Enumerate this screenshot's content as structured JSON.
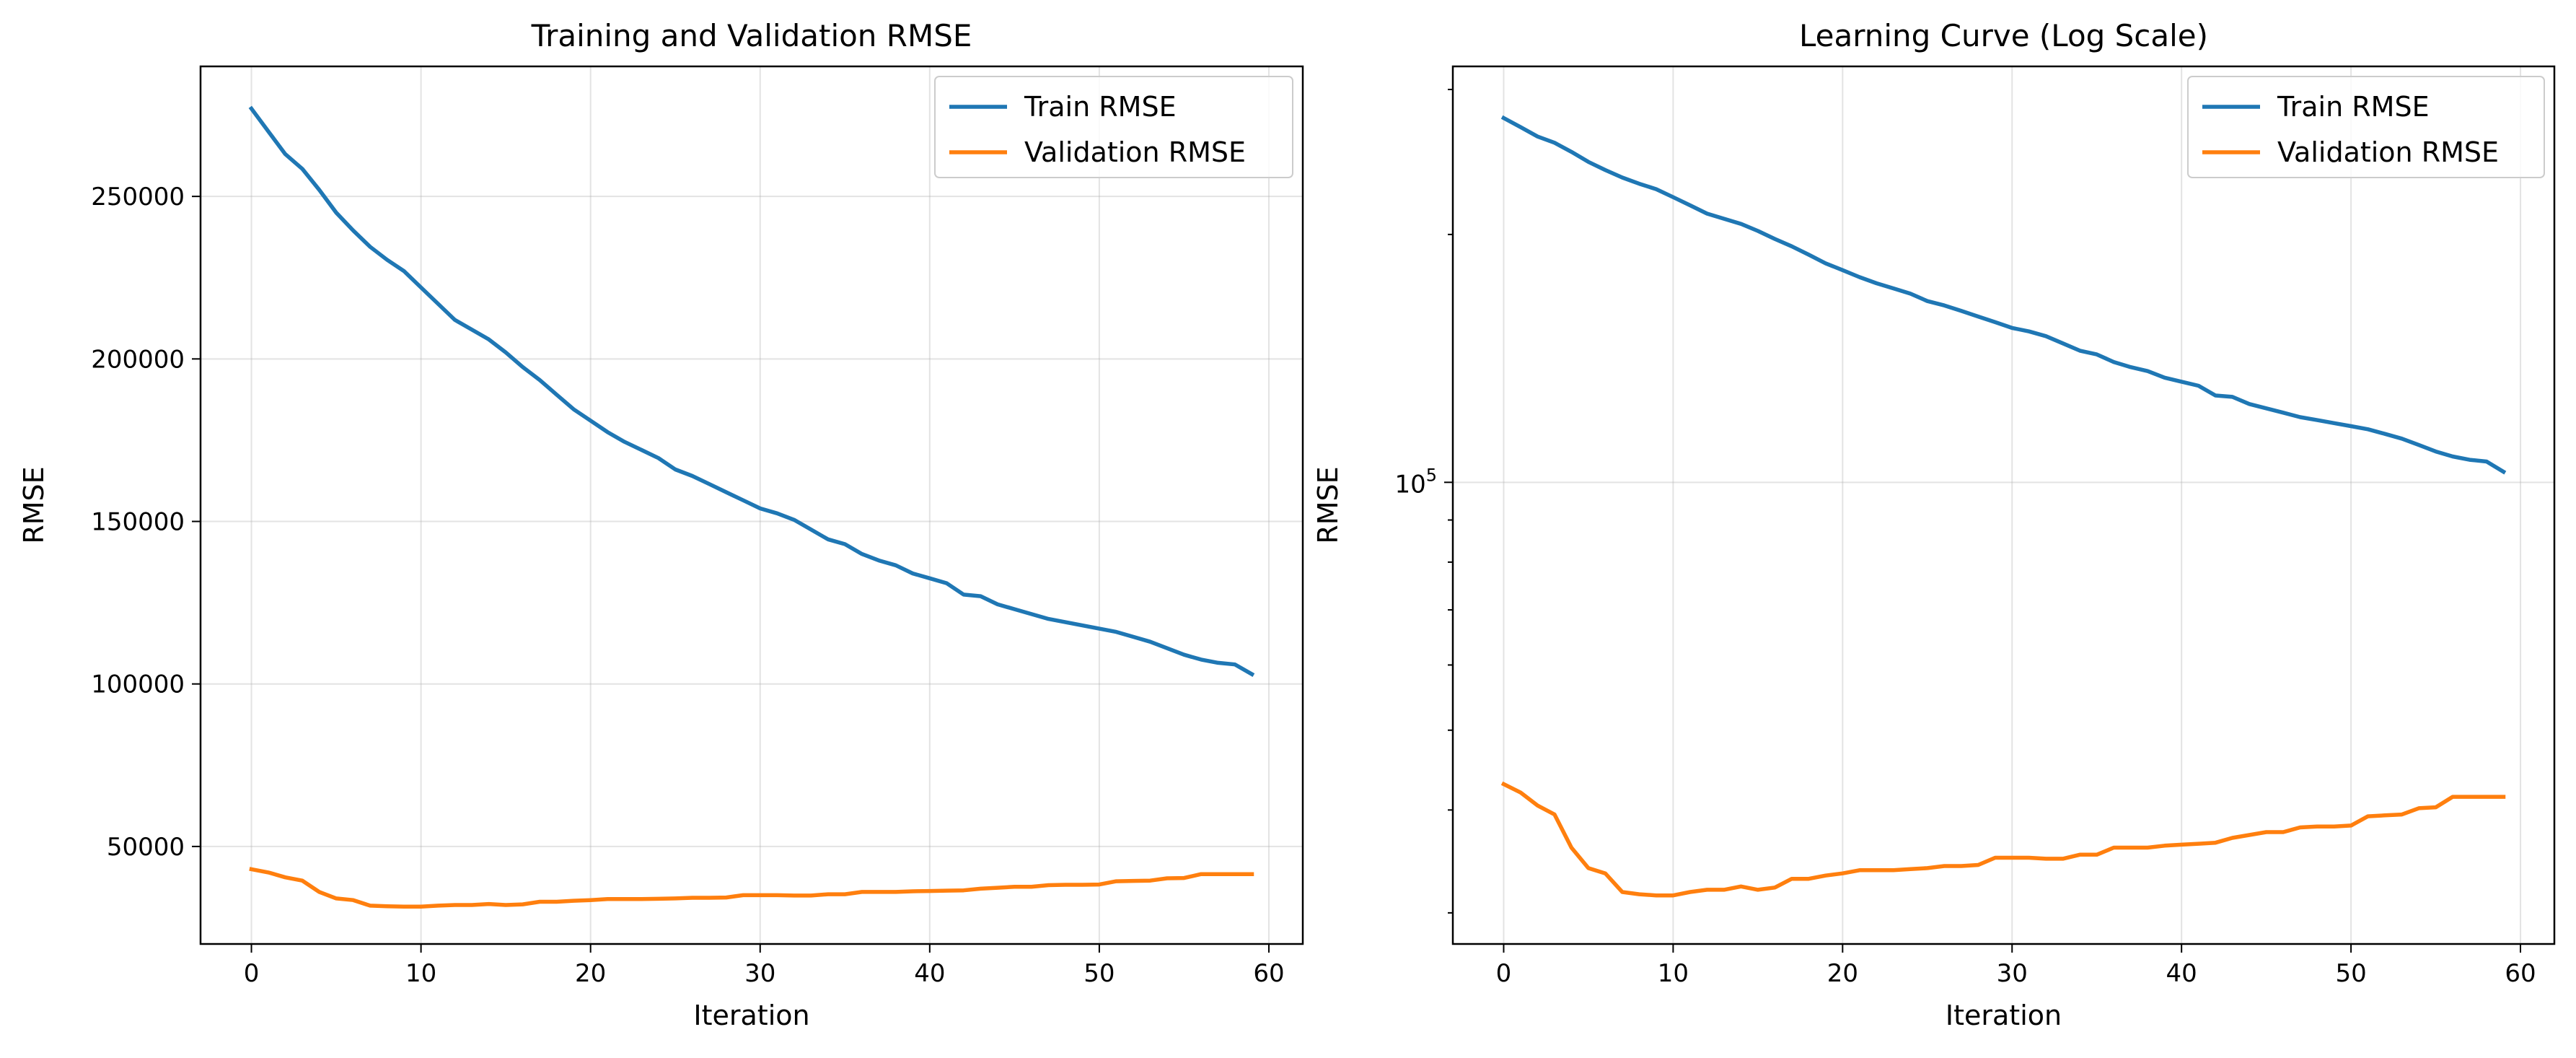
{
  "chart_data": [
    {
      "type": "line",
      "title": "Training and Validation RMSE",
      "xlabel": "Iteration",
      "ylabel": "RMSE",
      "yscale": "linear",
      "xlim": [
        -3,
        62
      ],
      "ylim": [
        20000,
        290000
      ],
      "xticks": [
        0,
        10,
        20,
        30,
        40,
        50,
        60
      ],
      "yticks": [
        50000,
        100000,
        150000,
        200000,
        250000
      ],
      "grid": true,
      "legend": "top-right",
      "x": [
        0,
        1,
        2,
        3,
        4,
        5,
        6,
        7,
        8,
        9,
        10,
        11,
        12,
        13,
        14,
        15,
        16,
        17,
        18,
        19,
        20,
        21,
        22,
        23,
        24,
        25,
        26,
        27,
        28,
        29,
        30,
        31,
        32,
        33,
        34,
        35,
        36,
        37,
        38,
        39,
        40,
        41,
        42,
        43,
        44,
        45,
        46,
        47,
        48,
        49,
        50,
        51,
        52,
        53,
        54,
        55,
        56,
        57,
        58,
        59
      ],
      "series": [
        {
          "name": "Train RMSE",
          "color": "#1f77b4",
          "values": [
            277000,
            270000,
            263000,
            258500,
            252000,
            245000,
            239500,
            234500,
            230500,
            227000,
            222000,
            217000,
            212000,
            209000,
            206000,
            202000,
            197500,
            193500,
            189000,
            184500,
            181000,
            177500,
            174500,
            172000,
            169500,
            166000,
            164000,
            161500,
            159000,
            156500,
            154000,
            152500,
            150500,
            147500,
            144500,
            143000,
            140000,
            138000,
            136500,
            134000,
            132500,
            131000,
            127500,
            127000,
            124500,
            123000,
            121500,
            120000,
            119000,
            118000,
            117000,
            116000,
            114500,
            113000,
            111000,
            109000,
            107500,
            106500,
            106000,
            103000
          ]
        },
        {
          "name": "Validation RMSE",
          "color": "#ff7f0e",
          "values": [
            43000,
            42000,
            40500,
            39500,
            36000,
            34000,
            33500,
            31800,
            31600,
            31500,
            31500,
            31800,
            32000,
            32000,
            32300,
            32000,
            32200,
            33000,
            33000,
            33300,
            33500,
            33800,
            33800,
            33800,
            33900,
            34000,
            34200,
            34200,
            34300,
            35000,
            35000,
            35000,
            34900,
            34900,
            35300,
            35300,
            36000,
            36000,
            36000,
            36200,
            36300,
            36400,
            36500,
            37000,
            37300,
            37600,
            37600,
            38100,
            38200,
            38200,
            38300,
            39300,
            39400,
            39500,
            40200,
            40300,
            41500,
            41500,
            41500,
            41500
          ]
        }
      ]
    },
    {
      "type": "line",
      "title": "Learning Curve (Log Scale)",
      "xlabel": "Iteration",
      "ylabel": "RMSE",
      "yscale": "log",
      "xlim": [
        -3,
        62
      ],
      "ylim": [
        27500,
        320000
      ],
      "xticks": [
        0,
        10,
        20,
        30,
        40,
        50,
        60
      ],
      "major_ytick_label": {
        "base": "10",
        "exponent": "5"
      },
      "minor_yticks": [
        30000,
        40000,
        50000,
        60000,
        70000,
        80000,
        90000,
        200000,
        300000
      ],
      "grid": true,
      "legend": "top-right",
      "x": [
        0,
        1,
        2,
        3,
        4,
        5,
        6,
        7,
        8,
        9,
        10,
        11,
        12,
        13,
        14,
        15,
        16,
        17,
        18,
        19,
        20,
        21,
        22,
        23,
        24,
        25,
        26,
        27,
        28,
        29,
        30,
        31,
        32,
        33,
        34,
        35,
        36,
        37,
        38,
        39,
        40,
        41,
        42,
        43,
        44,
        45,
        46,
        47,
        48,
        49,
        50,
        51,
        52,
        53,
        54,
        55,
        56,
        57,
        58,
        59
      ],
      "series": [
        {
          "name": "Train RMSE",
          "color": "#1f77b4",
          "values": [
            277000,
            270000,
            263000,
            258500,
            252000,
            245000,
            239500,
            234500,
            230500,
            227000,
            222000,
            217000,
            212000,
            209000,
            206000,
            202000,
            197500,
            193500,
            189000,
            184500,
            181000,
            177500,
            174500,
            172000,
            169500,
            166000,
            164000,
            161500,
            159000,
            156500,
            154000,
            152500,
            150500,
            147500,
            144500,
            143000,
            140000,
            138000,
            136500,
            134000,
            132500,
            131000,
            127500,
            127000,
            124500,
            123000,
            121500,
            120000,
            119000,
            118000,
            117000,
            116000,
            114500,
            113000,
            111000,
            109000,
            107500,
            106500,
            106000,
            103000
          ]
        },
        {
          "name": "Validation RMSE",
          "color": "#ff7f0e",
          "values": [
            43000,
            42000,
            40500,
            39500,
            36000,
            34000,
            33500,
            31800,
            31600,
            31500,
            31500,
            31800,
            32000,
            32000,
            32300,
            32000,
            32200,
            33000,
            33000,
            33300,
            33500,
            33800,
            33800,
            33800,
            33900,
            34000,
            34200,
            34200,
            34300,
            35000,
            35000,
            35000,
            34900,
            34900,
            35300,
            35300,
            36000,
            36000,
            36000,
            36200,
            36300,
            36400,
            36500,
            37000,
            37300,
            37600,
            37600,
            38100,
            38200,
            38200,
            38300,
            39300,
            39400,
            39500,
            40200,
            40300,
            41500,
            41500,
            41500,
            41500
          ]
        }
      ]
    }
  ]
}
